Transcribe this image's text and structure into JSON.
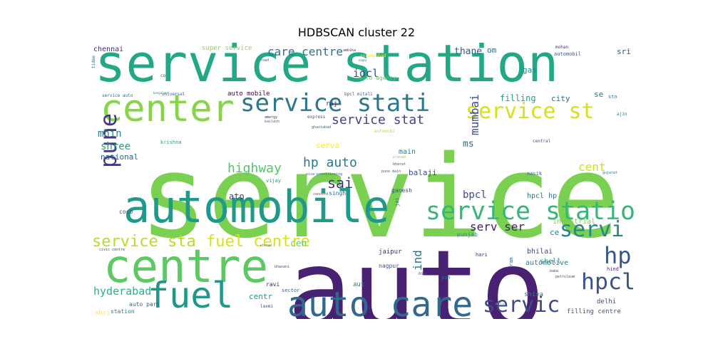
{
  "chart_data": {
    "type": "wordcloud",
    "title": "HDBSCAN cluster 22",
    "background": "#ffffff",
    "colormap": "viridis",
    "words": [
      {
        "text": "service",
        "weight": 1.0,
        "color": "#7ad151"
      },
      {
        "text": "auto",
        "weight": 0.9,
        "color": "#482173"
      },
      {
        "text": "service station",
        "weight": 0.62,
        "color": "#22a884"
      },
      {
        "text": "automobile",
        "weight": 0.5,
        "color": "#1f9a8a"
      },
      {
        "text": "centre",
        "weight": 0.48,
        "color": "#5ec962"
      },
      {
        "text": "auto care",
        "weight": 0.4,
        "color": "#31688e"
      },
      {
        "text": "center",
        "weight": 0.36,
        "color": "#86d549"
      },
      {
        "text": "fuel",
        "weight": 0.34,
        "color": "#1f988b"
      },
      {
        "text": "service statio",
        "weight": 0.3,
        "color": "#35b779"
      },
      {
        "text": "service stati",
        "weight": 0.28,
        "color": "#2a788e"
      },
      {
        "text": "service st",
        "weight": 0.26,
        "color": "#d5e21a"
      },
      {
        "text": "hpcl",
        "weight": 0.26,
        "color": "#3b528b"
      },
      {
        "text": "servic",
        "weight": 0.24,
        "color": "#3e4a89"
      },
      {
        "text": "servi",
        "weight": 0.22,
        "color": "#25848e"
      },
      {
        "text": "pune",
        "weight": 0.22,
        "color": "#443983"
      },
      {
        "text": "hp",
        "weight": 0.22,
        "color": "#39568c"
      },
      {
        "text": "service sta",
        "weight": 0.18,
        "color": "#b5de2b"
      },
      {
        "text": "fuel centre",
        "weight": 0.18,
        "color": "#d8e219"
      },
      {
        "text": "service stat",
        "weight": 0.15,
        "color": "#414487"
      },
      {
        "text": "care centre",
        "weight": 0.13,
        "color": "#2c728e"
      },
      {
        "text": "hp auto",
        "weight": 0.13,
        "color": "#2a788e"
      },
      {
        "text": "highway",
        "weight": 0.13,
        "color": "#52c569"
      },
      {
        "text": "sai",
        "weight": 0.13,
        "color": "#46337e"
      },
      {
        "text": "iocl",
        "weight": 0.12,
        "color": "#3b528b"
      },
      {
        "text": "mumbai",
        "weight": 0.12,
        "color": "#3e4c8a"
      },
      {
        "text": "ind",
        "weight": 0.12,
        "color": "#2a788e"
      },
      {
        "text": "cent",
        "weight": 0.12,
        "color": "#d0e11c"
      },
      {
        "text": "serv ser",
        "weight": 0.11,
        "color": "#481b6d"
      },
      {
        "text": "hyderabad",
        "weight": 0.11,
        "color": "#2db27d"
      },
      {
        "text": "bpcl",
        "weight": 0.11,
        "color": "#3f4889"
      },
      {
        "text": "mhin",
        "weight": 0.1,
        "color": "#26828e"
      },
      {
        "text": "shree",
        "weight": 0.1,
        "color": "#1f9e89"
      },
      {
        "text": "thane",
        "weight": 0.1,
        "color": "#38598c"
      },
      {
        "text": "cen",
        "weight": 0.1,
        "color": "#6ece58"
      },
      {
        "text": "raj",
        "weight": 0.06,
        "color": "#481f70"
      },
      {
        "text": "ato",
        "weight": 0.08,
        "color": "#443a83"
      },
      {
        "text": "centr",
        "weight": 0.07,
        "color": "#1f968b"
      },
      {
        "text": "national",
        "weight": 0.07,
        "color": "#33638d"
      },
      {
        "text": "servo",
        "weight": 0.07,
        "color": "#fde725"
      },
      {
        "text": "main",
        "weight": 0.07,
        "color": "#27808e"
      },
      {
        "text": "ms",
        "weight": 0.08,
        "color": "#2d708e"
      },
      {
        "text": "balaji",
        "weight": 0.07,
        "color": "#3b528b"
      },
      {
        "text": "filling",
        "weight": 0.07,
        "color": "#1fa187"
      },
      {
        "text": "city",
        "weight": 0.07,
        "color": "#2e6e8e"
      },
      {
        "text": "se",
        "weight": 0.07,
        "color": "#2c738e"
      },
      {
        "text": "gas",
        "weight": 0.07,
        "color": "#23898e"
      },
      {
        "text": "om",
        "weight": 0.07,
        "color": "#30698e"
      },
      {
        "text": "sri",
        "weight": 0.07,
        "color": "#3b528b"
      },
      {
        "text": "super service",
        "weight": 0.06,
        "color": "#8fd744"
      },
      {
        "text": "chennai",
        "weight": 0.06,
        "color": "#472c7a"
      },
      {
        "text": "auto mobile",
        "weight": 0.06,
        "color": "#440154"
      },
      {
        "text": "hpcl hp",
        "weight": 0.06,
        "color": "#2c738e"
      },
      {
        "text": "industrial",
        "weight": 0.06,
        "color": "#7ad151"
      },
      {
        "text": "automotive",
        "weight": 0.06,
        "color": "#26828e"
      },
      {
        "text": "bhilai",
        "weight": 0.06,
        "color": "#3e4a89"
      },
      {
        "text": "shell",
        "weight": 0.06,
        "color": "#1f988b"
      },
      {
        "text": "jaipur",
        "weight": 0.05,
        "color": "#482878"
      },
      {
        "text": "nagpur",
        "weight": 0.05,
        "color": "#3b528b"
      },
      {
        "text": "ravi",
        "weight": 0.05,
        "color": "#481a6c"
      },
      {
        "text": "sector",
        "weight": 0.04,
        "color": "#31688e"
      },
      {
        "text": "aut",
        "weight": 0.05,
        "color": "#2c728e"
      },
      {
        "text": "delhi",
        "weight": 0.05,
        "color": "#3b528b"
      },
      {
        "text": "filling centre",
        "weight": 0.05,
        "color": "#38598c"
      },
      {
        "text": "shiva",
        "weight": 0.05,
        "color": "#2a788e"
      },
      {
        "text": "auto part",
        "weight": 0.05,
        "color": "#31688e"
      },
      {
        "text": "station",
        "weight": 0.05,
        "color": "#2a788e"
      },
      {
        "text": "shri",
        "weight": 0.05,
        "color": "#fde725"
      },
      {
        "text": "ce",
        "weight": 0.06,
        "color": "#24878e"
      },
      {
        "text": "coco",
        "weight": 0.04,
        "color": "#404688"
      },
      {
        "text": "singh",
        "weight": 0.04,
        "color": "#2e6e8e"
      },
      {
        "text": "ganesh",
        "weight": 0.04,
        "color": "#3e4a89"
      },
      {
        "text": "vijay",
        "weight": 0.04,
        "color": "#1fa088"
      },
      {
        "text": "krishna",
        "weight": 0.04,
        "color": "#1f9e89"
      },
      {
        "text": "punjab",
        "weight": 0.04,
        "color": "#21918c"
      },
      {
        "text": "hari",
        "weight": 0.035,
        "color": "#482878"
      },
      {
        "text": "pun",
        "weight": 0.035,
        "color": "#2c728e"
      },
      {
        "text": "ram",
        "weight": 0.035,
        "color": "#2c728e"
      },
      {
        "text": "nasik",
        "weight": 0.035,
        "color": "#33638d"
      },
      {
        "text": "central",
        "weight": 0.035,
        "color": "#3e4a89"
      },
      {
        "text": "hind",
        "weight": 0.035,
        "color": "#472c7a"
      },
      {
        "text": "mohan",
        "weight": 0.035,
        "color": "#482878"
      },
      {
        "text": "automobil",
        "weight": 0.035,
        "color": "#3b528b"
      },
      {
        "text": "stn",
        "weight": 0.035,
        "color": "#2a788e"
      },
      {
        "text": "ajin",
        "weight": 0.03,
        "color": "#2c728e"
      },
      {
        "text": "service auto",
        "weight": 0.03,
        "color": "#31688e"
      },
      {
        "text": "universal",
        "weight": 0.03,
        "color": "#355f8d"
      },
      {
        "text": "bpcl mitali",
        "weight": 0.03,
        "color": "#33638d"
      },
      {
        "text": "auto agency",
        "weight": 0.035,
        "color": "#5ec962"
      },
      {
        "text": "express",
        "weight": 0.03,
        "color": "#3b528b"
      },
      {
        "text": "automobi",
        "weight": 0.03,
        "color": "#b5de2b"
      },
      {
        "text": "ghaziabad",
        "weight": 0.03,
        "color": "#31688e"
      },
      {
        "text": "pune main",
        "weight": 0.03,
        "color": "#31688e"
      },
      {
        "text": "visa provisioning",
        "weight": 0.025,
        "color": "#33638d"
      },
      {
        "text": "concord",
        "weight": 0.03,
        "color": "#3e4a89"
      },
      {
        "text": "jai",
        "weight": 0.03,
        "color": "#2c728e"
      },
      {
        "text": "nsw",
        "weight": 0.03,
        "color": "#443983"
      },
      {
        "text": "amergy",
        "weight": 0.025,
        "color": "#482878"
      },
      {
        "text": "kailash",
        "weight": 0.025,
        "color": "#33638d"
      },
      {
        "text": "bangalore",
        "weight": 0.025,
        "color": "#26828e"
      },
      {
        "text": "road",
        "weight": 0.025,
        "color": "#3b528b"
      },
      {
        "text": "aurangabad",
        "weight": 0.025,
        "color": "#fde725"
      },
      {
        "text": "ambika",
        "weight": 0.025,
        "color": "#482878"
      },
      {
        "text": "nagar",
        "weight": 0.025,
        "color": "#2c728e"
      },
      {
        "text": "tidee",
        "weight": 0.025,
        "color": "#33638d"
      },
      {
        "text": "co",
        "weight": 0.025,
        "color": "#3b528b"
      },
      {
        "text": "alfa",
        "weight": 0.025,
        "color": "#7ad151"
      },
      {
        "text": "laxmi",
        "weight": 0.025,
        "color": "#3e4a89"
      },
      {
        "text": "eternal",
        "weight": 0.025,
        "color": "#3e4a89"
      },
      {
        "text": "bharat",
        "weight": 0.025,
        "color": "#3b528b"
      },
      {
        "text": "prasad",
        "weight": 0.025,
        "color": "#8fd744"
      },
      {
        "text": "baba",
        "weight": 0.025,
        "color": "#3b528b"
      },
      {
        "text": "petroleum",
        "weight": 0.025,
        "color": "#3e4a89"
      },
      {
        "text": "gujarat",
        "weight": 0.025,
        "color": "#2a788e"
      },
      {
        "text": "bhavani",
        "weight": 0.025,
        "color": "#3e4a89"
      },
      {
        "text": "civic centre",
        "weight": 0.025,
        "color": "#3e4a89"
      }
    ]
  }
}
